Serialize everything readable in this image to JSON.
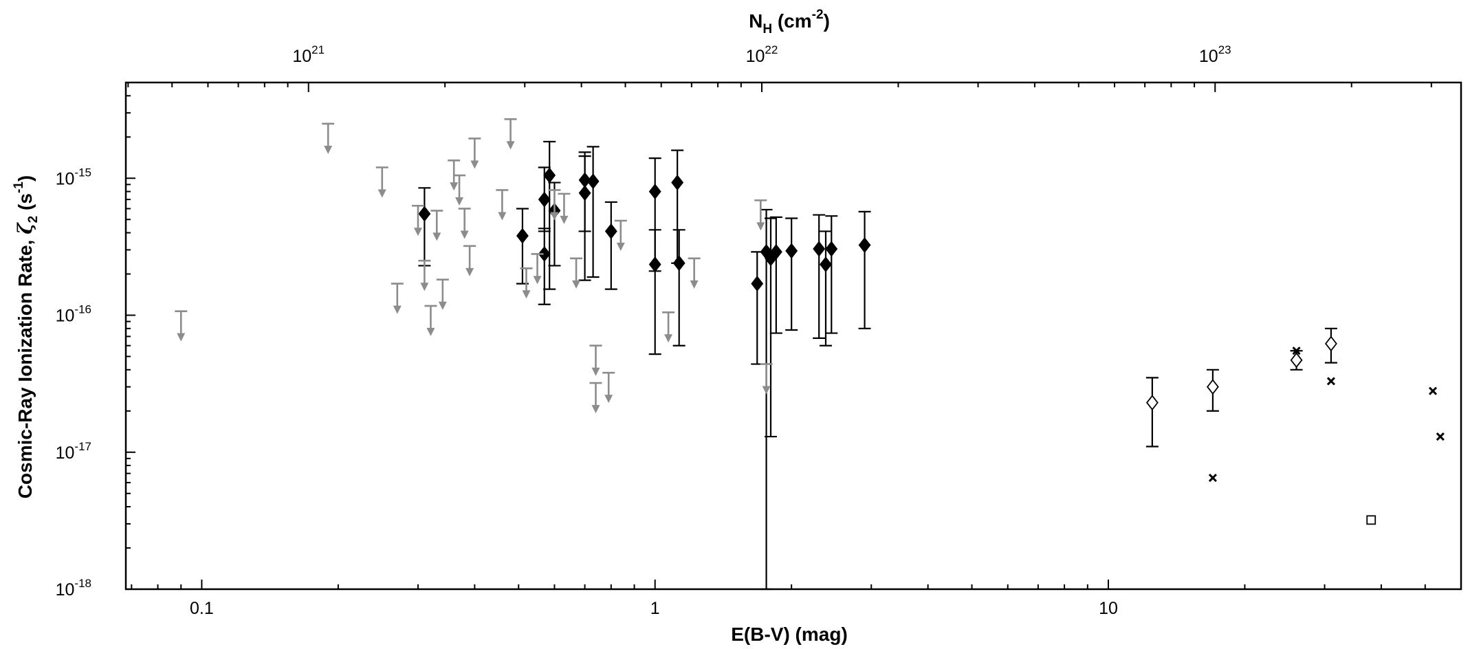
{
  "chart_data": {
    "type": "scatter",
    "x_scale": "log",
    "y_scale": "log",
    "xlim": [
      0.068,
      60
    ],
    "ylim": [
      1e-18,
      5e-15
    ],
    "xlabel": "E(B-V) (mag)",
    "ylabel": {
      "main": "Cosmic-Ray Ionization Rate, ",
      "symbol": "ζ",
      "sub": "2",
      "unit_open": " (s",
      "unit_sup": "-1",
      "unit_close": ")"
    },
    "top_xlabel": {
      "main": "N",
      "sub": "H",
      "unit_open": " (cm",
      "unit_sup": "-2",
      "unit_close": ")"
    },
    "x_ticks": [
      {
        "value": 0.1,
        "label": "0.1"
      },
      {
        "value": 1,
        "label": "1"
      },
      {
        "value": 10,
        "label": "10"
      }
    ],
    "y_ticks": [
      {
        "value": 1e-18,
        "mantissa": "10",
        "exponent": "-18"
      },
      {
        "value": 1e-17,
        "mantissa": "10",
        "exponent": "-17"
      },
      {
        "value": 1e-16,
        "mantissa": "10",
        "exponent": "-16"
      },
      {
        "value": 1e-15,
        "mantissa": "10",
        "exponent": "-15"
      }
    ],
    "top_ticks": [
      {
        "value": 0.172,
        "mantissa": "10",
        "exponent": "21"
      },
      {
        "value": 1.72,
        "mantissa": "10",
        "exponent": "22"
      },
      {
        "value": 17.2,
        "mantissa": "10",
        "exponent": "23"
      }
    ],
    "colors": {
      "detection": "#000000",
      "upper_limit": "#8c8c8c",
      "axis": "#000000"
    },
    "series": [
      {
        "marker": "filled-diamond",
        "points": [
          {
            "x": 0.31,
            "y": 5.5e-16,
            "lo": 2.3e-16,
            "hi": 8.5e-16
          },
          {
            "x": 0.51,
            "y": 3.8e-16,
            "lo": 1.7e-16,
            "hi": 6e-16
          },
          {
            "x": 0.57,
            "y": 2.8e-16,
            "lo": 1.2e-16,
            "hi": 4.3e-16
          },
          {
            "x": 0.57,
            "y": 7e-16,
            "lo": 4.1e-16,
            "hi": 1.2e-15
          },
          {
            "x": 0.585,
            "y": 1.05e-15,
            "lo": 1.55e-16,
            "hi": 1.85e-15
          },
          {
            "x": 0.6,
            "y": 5.8e-16,
            "lo": 2.3e-16,
            "hi": 9.3e-16
          },
          {
            "x": 0.7,
            "y": 9.7e-16,
            "lo": 4.1e-16,
            "hi": 1.45e-15
          },
          {
            "x": 0.7,
            "y": 7.8e-16,
            "lo": 1.8e-16,
            "hi": 1.55e-15
          },
          {
            "x": 0.73,
            "y": 9.5e-16,
            "lo": 1.9e-16,
            "hi": 1.7e-15
          },
          {
            "x": 0.8,
            "y": 4.1e-16,
            "lo": 1.55e-16,
            "hi": 6.7e-16
          },
          {
            "x": 1.0,
            "y": 8e-16,
            "lo": 2.1e-16,
            "hi": 1.4e-15
          },
          {
            "x": 1.0,
            "y": 2.35e-16,
            "lo": 5.2e-17,
            "hi": 4.2e-16
          },
          {
            "x": 1.12,
            "y": 9.3e-16,
            "lo": 2.4e-16,
            "hi": 1.6e-15
          },
          {
            "x": 1.13,
            "y": 2.4e-16,
            "lo": 6e-17,
            "hi": 4.2e-16
          },
          {
            "x": 1.68,
            "y": 1.7e-16,
            "lo": 4.4e-17,
            "hi": 2.9e-16
          },
          {
            "x": 1.76,
            "y": 2.9e-16,
            "lo": 1e-18,
            "hi": 5.9e-16
          },
          {
            "x": 1.8,
            "y": 2.6e-16,
            "lo": 1.3e-17,
            "hi": 5.1e-16
          },
          {
            "x": 1.85,
            "y": 2.9e-16,
            "lo": 7.4e-17,
            "hi": 5.2e-16
          },
          {
            "x": 2.0,
            "y": 2.95e-16,
            "lo": 7.8e-17,
            "hi": 5.1e-16
          },
          {
            "x": 2.3,
            "y": 3.05e-16,
            "lo": 6.8e-17,
            "hi": 5.4e-16
          },
          {
            "x": 2.38,
            "y": 2.35e-16,
            "lo": 6e-17,
            "hi": 4.1e-16
          },
          {
            "x": 2.45,
            "y": 3.05e-16,
            "lo": 7.4e-17,
            "hi": 5.3e-16
          },
          {
            "x": 2.9,
            "y": 3.25e-16,
            "lo": 8e-17,
            "hi": 5.7e-16
          }
        ]
      },
      {
        "marker": "upper-limit-arrow",
        "points": [
          {
            "x": 0.09,
            "y": 1.07e-16
          },
          {
            "x": 0.19,
            "y": 2.5e-15
          },
          {
            "x": 0.25,
            "y": 1.2e-15
          },
          {
            "x": 0.27,
            "y": 1.7e-16
          },
          {
            "x": 0.3,
            "y": 6.3e-16
          },
          {
            "x": 0.31,
            "y": 2.5e-16
          },
          {
            "x": 0.32,
            "y": 1.17e-16
          },
          {
            "x": 0.33,
            "y": 5.8e-16
          },
          {
            "x": 0.34,
            "y": 1.82e-16
          },
          {
            "x": 0.36,
            "y": 1.35e-15
          },
          {
            "x": 0.37,
            "y": 1.05e-15
          },
          {
            "x": 0.38,
            "y": 6e-16
          },
          {
            "x": 0.39,
            "y": 3.2e-16
          },
          {
            "x": 0.4,
            "y": 1.95e-15
          },
          {
            "x": 0.46,
            "y": 8.2e-16
          },
          {
            "x": 0.48,
            "y": 2.7e-15
          },
          {
            "x": 0.52,
            "y": 2.2e-16
          },
          {
            "x": 0.55,
            "y": 2.8e-16
          },
          {
            "x": 0.6,
            "y": 8.2e-16
          },
          {
            "x": 0.63,
            "y": 7.7e-16
          },
          {
            "x": 0.67,
            "y": 2.6e-16
          },
          {
            "x": 0.74,
            "y": 6e-17
          },
          {
            "x": 0.74,
            "y": 3.2e-17
          },
          {
            "x": 0.79,
            "y": 3.8e-17
          },
          {
            "x": 0.84,
            "y": 4.9e-16
          },
          {
            "x": 1.07,
            "y": 1.05e-16
          },
          {
            "x": 1.22,
            "y": 2.6e-16
          },
          {
            "x": 1.71,
            "y": 6.9e-16
          },
          {
            "x": 1.76,
            "y": 4.4e-17
          }
        ]
      },
      {
        "marker": "open-diamond",
        "points": [
          {
            "x": 12.5,
            "y": 2.3e-17,
            "lo": 1.1e-17,
            "hi": 3.5e-17
          },
          {
            "x": 17.0,
            "y": 3e-17,
            "lo": 2e-17,
            "hi": 4e-17
          },
          {
            "x": 26.0,
            "y": 4.7e-17,
            "lo": 4e-17,
            "hi": 5.5e-17
          },
          {
            "x": 31.0,
            "y": 6.2e-17,
            "lo": 4.5e-17,
            "hi": 8e-17
          }
        ]
      },
      {
        "marker": "cross",
        "points": [
          {
            "x": 17.0,
            "y": 6.5e-18
          },
          {
            "x": 26.0,
            "y": 5.5e-17
          },
          {
            "x": 31.0,
            "y": 3.3e-17
          },
          {
            "x": 52.0,
            "y": 2.8e-17
          },
          {
            "x": 54.0,
            "y": 1.3e-17
          }
        ]
      },
      {
        "marker": "open-square",
        "points": [
          {
            "x": 38.0,
            "y": 3.2e-18
          }
        ]
      }
    ]
  }
}
